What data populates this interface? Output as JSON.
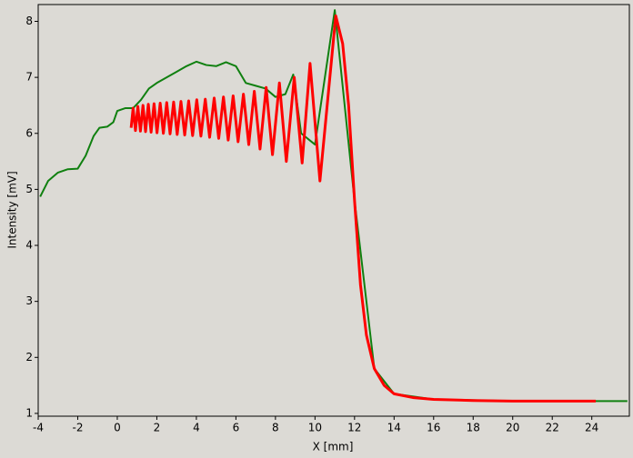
{
  "chart_data": {
    "type": "line",
    "x_label": "X [mm]",
    "y_label": "Intensity [mV]",
    "xlim": [
      -4,
      25.9
    ],
    "ylim": [
      0.95,
      8.3
    ],
    "xticks": [
      -4,
      -2,
      0,
      2,
      4,
      6,
      8,
      10,
      12,
      14,
      16,
      18,
      20,
      22,
      24
    ],
    "yticks": [
      1,
      2,
      3,
      4,
      5,
      6,
      7,
      8
    ],
    "series": [
      {
        "color": "#108010",
        "x": [
          -3.9,
          -3.5,
          -3,
          -2.5,
          -2,
          -1.6,
          -1.2,
          -0.9,
          -0.5,
          -0.2,
          0,
          0.4,
          0.8,
          1.2,
          1.6,
          2,
          2.5,
          3,
          3.5,
          4,
          4.5,
          5,
          5.5,
          6,
          6.5,
          7,
          7.5,
          8,
          8.5,
          8.9,
          9.3,
          10,
          11,
          12,
          13,
          14,
          16,
          20,
          24,
          25.8
        ],
        "values": [
          4.87,
          5.15,
          5.3,
          5.36,
          5.37,
          5.6,
          5.95,
          6.1,
          6.12,
          6.2,
          6.4,
          6.45,
          6.45,
          6.6,
          6.8,
          6.9,
          7.0,
          7.1,
          7.2,
          7.28,
          7.22,
          7.2,
          7.27,
          7.2,
          6.9,
          6.85,
          6.8,
          6.65,
          6.7,
          7.05,
          6.0,
          5.8,
          8.2,
          4.8,
          1.8,
          1.35,
          1.25,
          1.22,
          1.22,
          1.22
        ]
      },
      {
        "color": "#ff0000",
        "x": [
          0.7,
          0.8,
          0.92,
          1.04,
          1.17,
          1.3,
          1.43,
          1.57,
          1.71,
          1.86,
          2.01,
          2.17,
          2.33,
          2.5,
          2.67,
          2.85,
          3.03,
          3.22,
          3.41,
          3.61,
          3.81,
          4.02,
          4.23,
          4.45,
          4.67,
          4.9,
          5.13,
          5.37,
          5.61,
          5.86,
          6.11,
          6.38,
          6.65,
          6.93,
          7.22,
          7.53,
          7.85,
          8.2,
          8.55,
          8.95,
          9.35,
          9.75,
          10.25,
          11.05,
          11.4,
          11.7,
          12.0,
          12.3,
          12.6,
          13.0,
          13.5,
          14,
          15,
          16,
          18,
          20,
          22,
          24.2
        ],
        "values": [
          6.1,
          6.45,
          6.05,
          6.48,
          6.04,
          6.5,
          6.03,
          6.52,
          6.02,
          6.53,
          6.01,
          6.54,
          6.0,
          6.55,
          5.99,
          6.56,
          5.98,
          6.57,
          5.97,
          6.58,
          5.96,
          6.6,
          5.95,
          6.61,
          5.93,
          6.63,
          5.91,
          6.65,
          5.88,
          6.67,
          5.85,
          6.7,
          5.8,
          6.75,
          5.72,
          6.82,
          5.62,
          6.9,
          5.5,
          7.0,
          5.47,
          7.25,
          5.15,
          8.1,
          7.6,
          6.5,
          4.8,
          3.3,
          2.4,
          1.8,
          1.5,
          1.35,
          1.28,
          1.25,
          1.23,
          1.22,
          1.22,
          1.22
        ]
      }
    ]
  }
}
